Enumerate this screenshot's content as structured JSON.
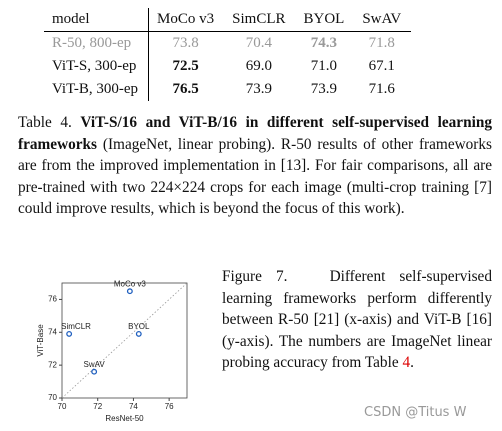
{
  "table": {
    "header": [
      "model",
      "MoCo v3",
      "SimCLR",
      "BYOL",
      "SwAV"
    ],
    "rows": [
      [
        "R-50, 800-ep",
        "73.8",
        "70.4",
        "74.3",
        "71.8"
      ],
      [
        "ViT-S, 300-ep",
        "72.5",
        "69.0",
        "71.0",
        "67.1"
      ],
      [
        "ViT-B, 300-ep",
        "76.5",
        "73.9",
        "73.9",
        "71.6"
      ]
    ]
  },
  "table_caption": {
    "label": "Table 4.",
    "title": "ViT-S/16 and ViT-B/16 in different self-supervised learning frameworks",
    "text": "(ImageNet, linear probing). R-50 results of other frameworks are from the improved implementation in [13]. For fair comparisons, all are pre-trained with two 224×224 crops for each image (multi-crop training [7] could improve results, which is beyond the focus of this work)."
  },
  "chart_data": {
    "type": "scatter",
    "xlabel": "ResNet-50",
    "ylabel": "ViT-Base",
    "labels": [
      "MoCo v3",
      "SimCLR",
      "BYOL",
      "SwAV"
    ],
    "x": [
      73.8,
      70.4,
      74.3,
      71.8
    ],
    "values": [
      76.5,
      73.9,
      73.9,
      71.6
    ],
    "color": "#1f5fbf",
    "xlim": [
      70,
      77
    ],
    "ylim": [
      70,
      77
    ],
    "xticks": [
      70,
      72,
      74,
      76
    ],
    "yticks": [
      70,
      72,
      74,
      76
    ]
  },
  "figure_caption": {
    "label": "Figure 7.",
    "text": "Different self-supervised learning frameworks perform differently between R-50 [21] (x-axis) and ViT-B [16] (y-axis). The numbers are ImageNet linear probing accuracy from Table",
    "ref": "4",
    "end": "."
  },
  "watermark": "CSDN @Titus W"
}
